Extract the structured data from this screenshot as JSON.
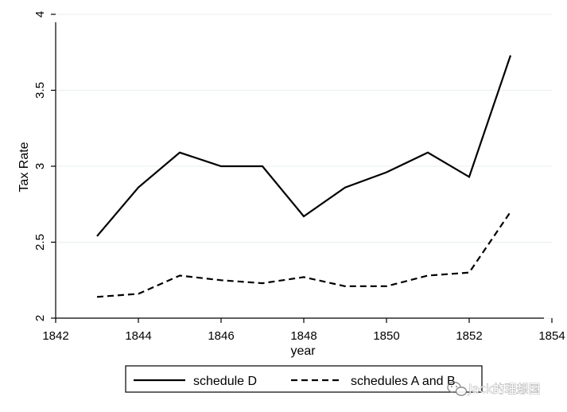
{
  "chart_data": {
    "type": "line",
    "xlabel": "year",
    "ylabel": "Tax Rate",
    "xlim": [
      1842,
      1854
    ],
    "ylim": [
      2,
      4
    ],
    "xticks": [
      "1842",
      "1844",
      "1846",
      "1848",
      "1850",
      "1852",
      "1854"
    ],
    "yticks": [
      "2",
      "2.5",
      "3",
      "3.5",
      "4"
    ],
    "grid": "horizontal",
    "legend_position": "bottom",
    "x": [
      1843,
      1844,
      1845,
      1846,
      1847,
      1848,
      1849,
      1850,
      1851,
      1852,
      1853
    ],
    "series": [
      {
        "name": "schedule D",
        "style": "solid",
        "color": "#000000",
        "values": [
          2.54,
          2.86,
          3.09,
          3.0,
          3.0,
          2.67,
          2.86,
          2.96,
          3.09,
          2.93,
          3.73
        ]
      },
      {
        "name": "schedules A and B",
        "style": "dashed",
        "color": "#000000",
        "values": [
          2.14,
          2.16,
          2.28,
          2.25,
          2.23,
          2.27,
          2.21,
          2.21,
          2.28,
          2.3,
          2.7
        ]
      }
    ]
  },
  "watermark": {
    "text": "Jack的理想国",
    "icon": "wechat-icon"
  }
}
